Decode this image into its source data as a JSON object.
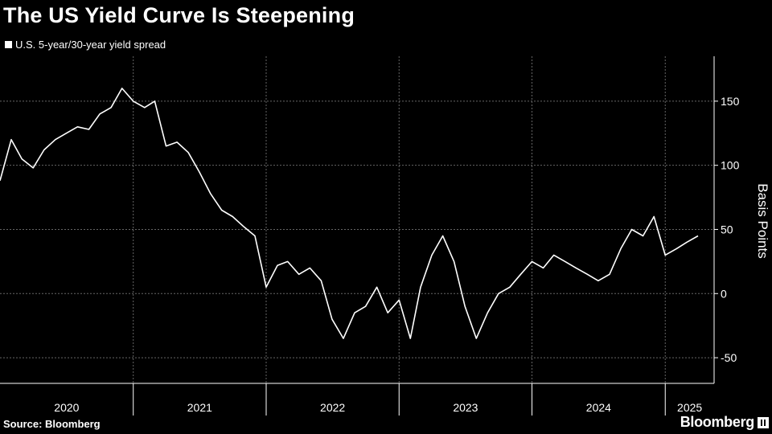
{
  "title": "The US Yield Curve Is Steepening",
  "source": "Source: Bloomberg",
  "brand": "Bloomberg",
  "colors": {
    "background": "#000000",
    "line": "#ffffff",
    "grid": "#666666",
    "text": "#ffffff"
  },
  "chart_data": {
    "type": "line",
    "series": [
      {
        "name": "U.S. 5-year/30-year yield spread",
        "x": [
          "2020-01-01",
          "2020-02-01",
          "2020-03-01",
          "2020-04-01",
          "2020-05-01",
          "2020-06-01",
          "2020-07-01",
          "2020-08-01",
          "2020-09-01",
          "2020-10-01",
          "2020-11-01",
          "2020-12-01",
          "2021-01-01",
          "2021-02-01",
          "2021-03-01",
          "2021-04-01",
          "2021-05-01",
          "2021-06-01",
          "2021-07-01",
          "2021-08-01",
          "2021-09-01",
          "2021-10-01",
          "2021-11-01",
          "2021-12-01",
          "2022-01-01",
          "2022-02-01",
          "2022-03-01",
          "2022-04-01",
          "2022-05-01",
          "2022-06-01",
          "2022-07-01",
          "2022-08-01",
          "2022-09-01",
          "2022-10-01",
          "2022-11-01",
          "2022-12-01",
          "2023-01-01",
          "2023-02-01",
          "2023-03-01",
          "2023-04-01",
          "2023-05-01",
          "2023-06-01",
          "2023-07-01",
          "2023-08-01",
          "2023-09-01",
          "2023-10-01",
          "2023-11-01",
          "2023-12-01",
          "2024-01-01",
          "2024-02-01",
          "2024-03-01",
          "2024-04-01",
          "2024-05-01",
          "2024-06-01",
          "2024-07-01",
          "2024-08-01",
          "2024-09-01",
          "2024-10-01",
          "2024-11-01",
          "2024-12-01",
          "2025-01-01",
          "2025-02-01",
          "2025-03-01",
          "2025-04-01"
        ],
        "values": [
          88,
          120,
          105,
          98,
          112,
          120,
          125,
          130,
          128,
          140,
          145,
          160,
          150,
          145,
          150,
          115,
          118,
          110,
          95,
          78,
          65,
          60,
          52,
          45,
          5,
          22,
          25,
          15,
          20,
          10,
          -20,
          -35,
          -15,
          -10,
          5,
          -15,
          -5,
          -35,
          5,
          30,
          45,
          25,
          -10,
          -35,
          -15,
          0,
          5,
          15,
          25,
          20,
          30,
          25,
          20,
          15,
          10,
          15,
          35,
          50,
          45,
          60,
          30,
          35,
          40,
          45
        ]
      }
    ],
    "x_ticks": [
      "2020",
      "2021",
      "2022",
      "2023",
      "2024",
      "2025"
    ],
    "y_ticks": [
      150,
      100,
      50,
      0,
      -50
    ],
    "ylim": [
      -70,
      185
    ],
    "ylabel": "Basis Points",
    "xlabel": "",
    "grid": true,
    "legend_position": "top-left"
  }
}
